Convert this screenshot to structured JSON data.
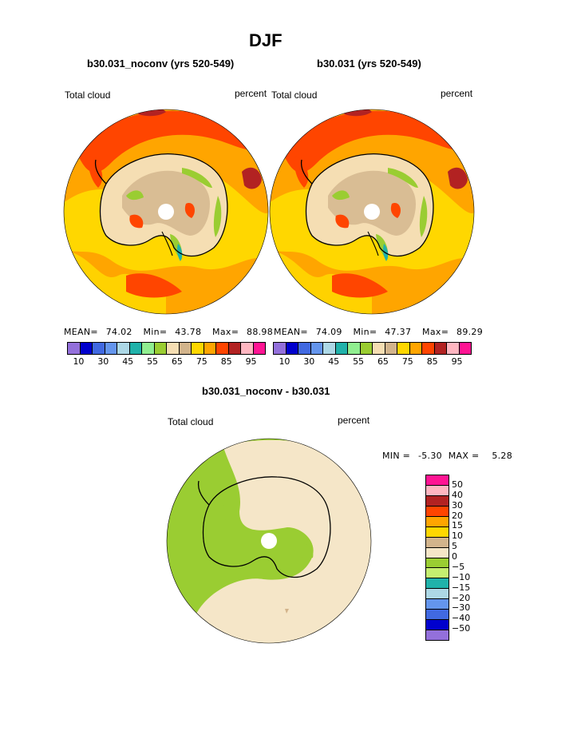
{
  "season": "DJF",
  "panels": [
    {
      "case_title": "b30.031_noconv (yrs 520-549)",
      "field_label": "Total cloud",
      "units": "percent",
      "stats": {
        "mean_label": "MEAN=",
        "mean": "74.02",
        "min_label": "Min=",
        "min": "43.78",
        "max_label": "Max=",
        "max": "88.98"
      }
    },
    {
      "case_title": "b30.031 (yrs 520-549)",
      "field_label": "Total cloud",
      "units": "percent",
      "stats": {
        "mean_label": "MEAN=",
        "mean": "74.09",
        "min_label": "Min=",
        "min": "47.37",
        "max_label": "Max=",
        "max": "89.29"
      }
    }
  ],
  "colorbar_top": {
    "colors": [
      "#9370DB",
      "#0000CD",
      "#4169E1",
      "#6495ED",
      "#ADD8E6",
      "#20B2AA",
      "#90EE90",
      "#9ACD32",
      "#F5DEB3",
      "#D2B48C",
      "#FFD700",
      "#FFA500",
      "#FF4500",
      "#B22222",
      "#FFB6C1",
      "#FF1493"
    ],
    "labels": [
      "10",
      "30",
      "45",
      "55",
      "65",
      "75",
      "85",
      "95"
    ]
  },
  "difference": {
    "title": "b30.031_noconv - b30.031",
    "field_label": "Total cloud",
    "units": "percent",
    "min_label": "MIN =",
    "min": "-5.30",
    "max_label": "MAX =",
    "max": "5.28"
  },
  "colorbar_diff": {
    "colors": [
      "#FF1493",
      "#FFB6C1",
      "#B22222",
      "#FF4500",
      "#FFA500",
      "#FFD700",
      "#D2B48C",
      "#F5E6C8",
      "#9ACD32",
      "#C5EE70",
      "#20B2AA",
      "#ADD8E6",
      "#6495ED",
      "#4169E1",
      "#0000CD",
      "#9370DB"
    ],
    "labels": [
      "50",
      "40",
      "30",
      "20",
      "15",
      "10",
      "5",
      "0",
      "−5",
      "−10",
      "−15",
      "−20",
      "−30",
      "−40",
      "−50"
    ]
  }
}
